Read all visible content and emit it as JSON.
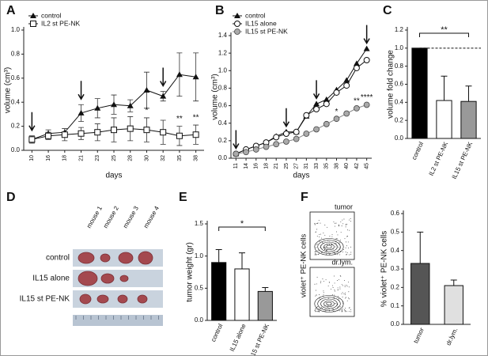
{
  "panel_labels": [
    "A",
    "B",
    "C",
    "D",
    "E",
    "F"
  ],
  "photo": {
    "columns": [
      "mouse 1",
      "mouse 2",
      "mouse 3",
      "mouse 4"
    ],
    "rows": [
      "control",
      "IL15 alone",
      "IL15 st PE-NK"
    ]
  },
  "flow_plots": {
    "ylabel": "violet⁺ PE-NK cells",
    "panels": [
      "tumor",
      "dr.lym."
    ]
  },
  "chart_data": [
    {
      "type": "line",
      "xlabel": "days",
      "ylabel": "volume (cm³)",
      "categories": [
        "10",
        "16",
        "18",
        "21",
        "23",
        "25",
        "28",
        "30",
        "32",
        "35",
        "38"
      ],
      "series": [
        {
          "name": "control",
          "color": "#111111",
          "marker": "triangle",
          "values": [
            0.09,
            0.14,
            0.15,
            0.31,
            0.35,
            0.38,
            0.37,
            0.5,
            0.45,
            0.63,
            0.61
          ],
          "errors": [
            0.03,
            0.03,
            0.03,
            0.07,
            0.08,
            0.08,
            0.05,
            0.15,
            0.04,
            0.18,
            0.2
          ]
        },
        {
          "name": "IL2 st PE-NK",
          "color": "#111111",
          "marker": "square",
          "values": [
            0.09,
            0.12,
            0.13,
            0.14,
            0.15,
            0.17,
            0.18,
            0.17,
            0.15,
            0.12,
            0.13
          ],
          "errors": [
            0.03,
            0.03,
            0.05,
            0.05,
            0.07,
            0.1,
            0.1,
            0.1,
            0.1,
            0.08,
            0.08
          ]
        }
      ],
      "annotations": [
        "*",
        "**",
        "**"
      ],
      "ylim": [
        0,
        1.0
      ],
      "yticks": [
        {
          "value": 0,
          "label": "0.0"
        },
        {
          "value": 0.2,
          "label": "0.2"
        },
        {
          "value": 0.4,
          "label": "0.4"
        },
        {
          "value": 0.6,
          "label": "0.6"
        },
        {
          "value": 0.8,
          "label": "0.8"
        },
        {
          "value": 1.0,
          "label": "1.0"
        }
      ],
      "legend": "top-left"
    },
    {
      "type": "line",
      "xlabel": "days",
      "ylabel": "volume (cm³)",
      "categories": [
        "11",
        "14",
        "16",
        "18",
        "21",
        "25",
        "27",
        "31",
        "33",
        "35",
        "38",
        "40",
        "42",
        "45"
      ],
      "series": [
        {
          "name": "control",
          "color": "#111111",
          "marker": "triangle",
          "values": [
            0.05,
            0.1,
            0.14,
            0.18,
            0.25,
            0.3,
            0.3,
            0.48,
            0.62,
            0.67,
            0.78,
            0.89,
            1.08,
            1.25
          ]
        },
        {
          "name": "IL15 alone",
          "color": "#111111",
          "marker": "circle-open",
          "values": [
            0.05,
            0.1,
            0.14,
            0.18,
            0.24,
            0.28,
            0.3,
            0.49,
            0.56,
            0.62,
            0.75,
            0.83,
            1.03,
            1.12
          ]
        },
        {
          "name": "IL15 st PE-NK",
          "color": "#888888",
          "marker": "circle-grey",
          "values": [
            0.05,
            0.07,
            0.1,
            0.13,
            0.16,
            0.19,
            0.22,
            0.28,
            0.33,
            0.39,
            0.45,
            0.51,
            0.57,
            0.61
          ]
        }
      ],
      "annotations": [
        "*",
        "**",
        "****"
      ],
      "ylim": [
        0,
        1.4
      ],
      "yticks": [
        {
          "value": 0,
          "label": "0.0"
        },
        {
          "value": 0.2,
          "label": "0.2"
        },
        {
          "value": 0.4,
          "label": "0.4"
        },
        {
          "value": 0.6,
          "label": "0.6"
        },
        {
          "value": 0.8,
          "label": "0.8"
        },
        {
          "value": 1.0,
          "label": "1.0"
        },
        {
          "value": 1.2,
          "label": "1.2"
        },
        {
          "value": 1.4,
          "label": "1.4"
        }
      ],
      "legend": "top-left"
    },
    {
      "type": "bar",
      "ylabel": "volume fold change",
      "categories": [
        "control",
        "IL2 st PE-NK",
        "IL15 st PE-NK"
      ],
      "values": [
        1.0,
        0.42,
        0.41
      ],
      "errors": [
        0,
        0.27,
        0.17
      ],
      "colors": [
        "#000000",
        "#ffffff",
        "#999999"
      ],
      "reference_line": 1.0,
      "significance": "**",
      "ylim": [
        0,
        1.2
      ],
      "yticks": [
        {
          "value": 0,
          "label": "0.0"
        },
        {
          "value": 0.2,
          "label": "0.2"
        },
        {
          "value": 0.4,
          "label": "0.4"
        },
        {
          "value": 0.6,
          "label": "0.6"
        },
        {
          "value": 0.8,
          "label": "0.8"
        },
        {
          "value": 1.0,
          "label": "1.0"
        },
        {
          "value": 1.2,
          "label": "1.2"
        }
      ]
    },
    {
      "type": "bar",
      "ylabel": "tumor weight (gr)",
      "categories": [
        "control",
        "IL15 alone",
        "IL15 st PE-NK"
      ],
      "values": [
        0.9,
        0.8,
        0.45
      ],
      "errors": [
        0.2,
        0.25,
        0.06
      ],
      "colors": [
        "#000000",
        "#ffffff",
        "#999999"
      ],
      "significance": "*",
      "ylim": [
        0,
        1.5
      ],
      "yticks": [
        {
          "value": 0,
          "label": "0.0"
        },
        {
          "value": 0.5,
          "label": "0.5"
        },
        {
          "value": 1.0,
          "label": "1.0"
        },
        {
          "value": 1.5,
          "label": "1.5"
        }
      ]
    },
    {
      "type": "bar",
      "ylabel": "% violet⁺ PE-NK cells",
      "categories": [
        "tumor",
        "dr.lym."
      ],
      "values": [
        0.33,
        0.21
      ],
      "errors": [
        0.17,
        0.03
      ],
      "colors": [
        "#555555",
        "#e0e0e0"
      ],
      "ylim": [
        0,
        0.6
      ],
      "yticks": [
        {
          "value": 0,
          "label": "0.0"
        },
        {
          "value": 0.1,
          "label": "0.1"
        },
        {
          "value": 0.2,
          "label": "0.2"
        },
        {
          "value": 0.3,
          "label": "0.3"
        },
        {
          "value": 0.4,
          "label": "0.4"
        },
        {
          "value": 0.5,
          "label": "0.5"
        },
        {
          "value": 0.6,
          "label": "0.6"
        }
      ]
    }
  ]
}
